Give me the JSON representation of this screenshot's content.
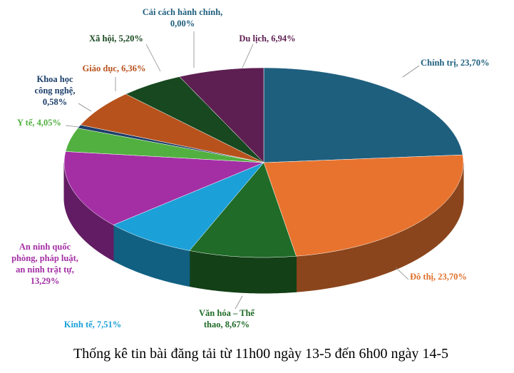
{
  "chart_data": {
    "type": "pie",
    "title": "Thống kê tin bài đăng tải từ 11h00 ngày 13-5 đến 6h00 ngày 14-5",
    "values": [
      23.7,
      23.7,
      8.67,
      7.51,
      13.29,
      4.05,
      0.58,
      6.36,
      5.2,
      0.0,
      6.94
    ],
    "value_labels": [
      [
        "Chính trị, 23,70%"
      ],
      [
        "Đô thị, 23,70%"
      ],
      [
        "Văn hóa – Thể",
        "thao, 8,67%"
      ],
      [
        "Kinh tế, 7,51%"
      ],
      [
        "An ninh quốc",
        "phòng, pháp luật,",
        "an ninh trật tự,",
        "13,29%"
      ],
      [
        "Y tế, 4,05%"
      ],
      [
        "Khoa học",
        "công nghệ,",
        "0,58%"
      ],
      [
        "Giáo dục, 6,36%"
      ],
      [
        "Xã hội, 5,20%"
      ],
      [
        "Cải cách hành chính,",
        "0,00%"
      ],
      [
        "Du lịch, 6,94%"
      ]
    ],
    "colors": [
      "#1f5f7e",
      "#e8732e",
      "#1f6b27",
      "#1ca0d8",
      "#a42fa5",
      "#52b040",
      "#1d3f6a",
      "#b8521c",
      "#18481f",
      "#3a6fb0",
      "#5d1f52"
    ],
    "label_colors": [
      "#1f5f7e",
      "#e0702a",
      "#1f6b27",
      "#1ca0d8",
      "#a42fa5",
      "#52b040",
      "#1d3f6a",
      "#b8521c",
      "#18481f",
      "#1f5f7e",
      "#5d1f52"
    ]
  }
}
